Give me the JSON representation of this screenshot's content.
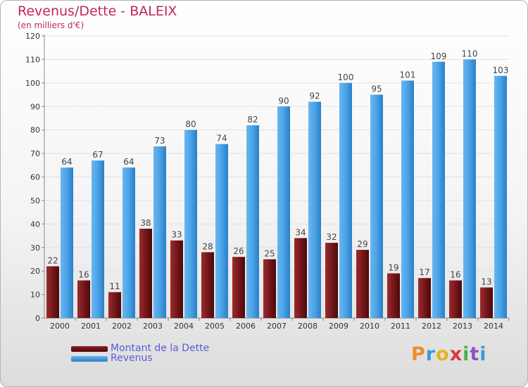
{
  "title": "Revenus/Dette - BALEIX",
  "subtitle": "(en milliers d'€)",
  "logo": "Proxiti",
  "colors": {
    "debt": "#6b1316",
    "revenue": "#3a95dd",
    "title": "#c2255c",
    "legend_text": "#5b5bd8"
  },
  "chart_data": {
    "type": "bar",
    "categories": [
      "2000",
      "2001",
      "2002",
      "2003",
      "2004",
      "2005",
      "2006",
      "2007",
      "2008",
      "2009",
      "2010",
      "2011",
      "2012",
      "2013",
      "2014"
    ],
    "series": [
      {
        "name": "Montant de la Dette",
        "values": [
          22,
          16,
          11,
          38,
          33,
          28,
          26,
          25,
          34,
          32,
          29,
          19,
          17,
          16,
          13
        ]
      },
      {
        "name": "Revenus",
        "values": [
          64,
          67,
          64,
          73,
          80,
          74,
          82,
          90,
          92,
          100,
          95,
          101,
          109,
          110,
          103
        ]
      }
    ],
    "title": "Revenus/Dette - BALEIX",
    "xlabel": "",
    "ylabel": "",
    "ylim": [
      0,
      120
    ],
    "yticks": [
      0,
      10,
      20,
      30,
      40,
      50,
      60,
      70,
      80,
      90,
      100,
      110,
      120
    ],
    "grid": true,
    "legend": "bottom-left"
  }
}
